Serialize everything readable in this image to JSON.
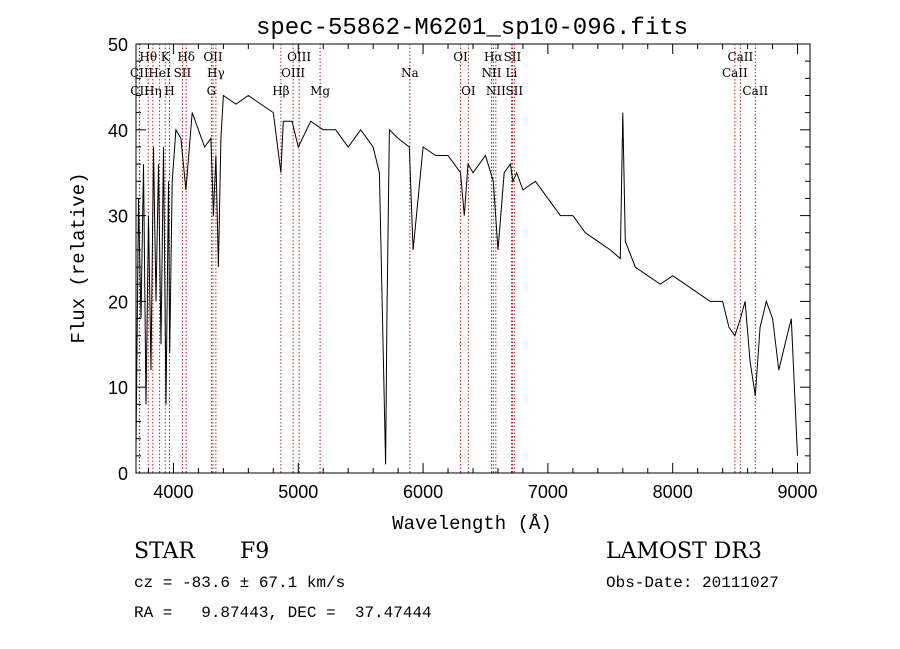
{
  "chart_data": {
    "type": "line",
    "title": "spec-55862-M6201_sp10-096.fits",
    "xlabel": "Wavelength (Å)",
    "ylabel": "Flux (relative)",
    "xlim": [
      3700,
      9100
    ],
    "ylim": [
      0,
      50
    ],
    "xticks": [
      4000,
      5000,
      6000,
      7000,
      8000,
      9000
    ],
    "yticks": [
      0,
      10,
      20,
      30,
      40,
      50
    ],
    "line_color": "#000000",
    "marker_color": "#b22222",
    "series": [
      {
        "name": "flux",
        "x": [
          3700,
          3720,
          3740,
          3760,
          3780,
          3800,
          3820,
          3840,
          3860,
          3880,
          3900,
          3920,
          3940,
          3960,
          3970,
          3990,
          4020,
          4060,
          4100,
          4150,
          4200,
          4250,
          4300,
          4320,
          4340,
          4360,
          4380,
          4400,
          4500,
          4600,
          4700,
          4800,
          4861,
          4880,
          4950,
          5000,
          5100,
          5200,
          5300,
          5400,
          5500,
          5600,
          5650,
          5700,
          5710,
          5730,
          5800,
          5890,
          5920,
          6000,
          6100,
          6200,
          6300,
          6330,
          6360,
          6400,
          6500,
          6563,
          6600,
          6650,
          6700,
          6720,
          6750,
          6800,
          6900,
          7000,
          7100,
          7200,
          7300,
          7400,
          7500,
          7580,
          7600,
          7620,
          7700,
          7800,
          7900,
          8000,
          8100,
          8200,
          8300,
          8400,
          8450,
          8498,
          8542,
          8580,
          8620,
          8662,
          8700,
          8750,
          8800,
          8850,
          8900,
          8950,
          9000
        ],
        "y": [
          3,
          32,
          18,
          36,
          8,
          30,
          12,
          38,
          20,
          36,
          15,
          38,
          8,
          34,
          14,
          34,
          40,
          39,
          33,
          42,
          40,
          38,
          39,
          30,
          37,
          24,
          39,
          44,
          43,
          44,
          43,
          42,
          35,
          41,
          41,
          38,
          41,
          40,
          40,
          38,
          40,
          38,
          35,
          1,
          18,
          40,
          39,
          38,
          26,
          38,
          37,
          37,
          35,
          30,
          36,
          35,
          37,
          34,
          26,
          35,
          36,
          34,
          35,
          33,
          34,
          32,
          30,
          30,
          28,
          27,
          26,
          25,
          42,
          27,
          24,
          23,
          22,
          23,
          22,
          21,
          20,
          20,
          17,
          16,
          18,
          20,
          13,
          9,
          17,
          20,
          18,
          12,
          15,
          18,
          2
        ]
      }
    ],
    "spectral_lines": [
      {
        "label": "CII",
        "x": 3727,
        "row": 2
      },
      {
        "label": "CII",
        "x": 3729,
        "row": 3
      },
      {
        "label": "Hθ",
        "x": 3798,
        "row": 1
      },
      {
        "label": "Hη",
        "x": 3835,
        "row": 3
      },
      {
        "label": "HeI",
        "x": 3889,
        "row": 2
      },
      {
        "label": "K",
        "x": 3934,
        "row": 1
      },
      {
        "label": "SII",
        "x": 4072,
        "row": 2
      },
      {
        "label": "H",
        "x": 3968,
        "row": 3
      },
      {
        "label": "Hδ",
        "x": 4102,
        "row": 1
      },
      {
        "label": "OII",
        "x": 4317,
        "row": 1
      },
      {
        "label": "Hγ",
        "x": 4340,
        "row": 2
      },
      {
        "label": "G",
        "x": 4304,
        "row": 3
      },
      {
        "label": "Hβ",
        "x": 4861,
        "row": 3
      },
      {
        "label": "OIII",
        "x": 4959,
        "row": 2
      },
      {
        "label": "OIII",
        "x": 5007,
        "row": 1
      },
      {
        "label": "Mg",
        "x": 5175,
        "row": 3
      },
      {
        "label": "Na",
        "x": 5894,
        "row": 2
      },
      {
        "label": "OI",
        "x": 6300,
        "row": 1
      },
      {
        "label": "OI",
        "x": 6363,
        "row": 3
      },
      {
        "label": "NII",
        "x": 6548,
        "row": 2
      },
      {
        "label": "Hα",
        "x": 6563,
        "row": 1
      },
      {
        "label": "NII",
        "x": 6583,
        "row": 3
      },
      {
        "label": "SII",
        "x": 6716,
        "row": 1
      },
      {
        "label": "Li",
        "x": 6708,
        "row": 2
      },
      {
        "label": "SII",
        "x": 6731,
        "row": 3
      },
      {
        "label": "CaII",
        "x": 8498,
        "row": 2
      },
      {
        "label": "CaII",
        "x": 8542,
        "row": 1
      },
      {
        "label": "CaII",
        "x": 8662,
        "row": 3
      }
    ]
  },
  "info": {
    "object_class": "STAR",
    "subclass": "F9",
    "survey": "LAMOST DR3",
    "redshift": "cz = -83.6 ± 67.1 km/s",
    "obs_date": "Obs-Date: 20111027",
    "coords": "RA =   9.87443, DEC =  37.47444"
  }
}
